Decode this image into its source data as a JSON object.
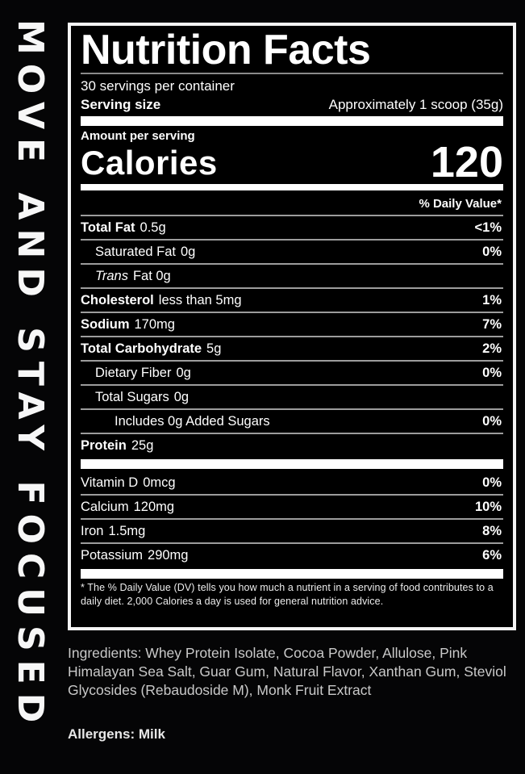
{
  "side_text": "MOVE AND STAY FOCUSED",
  "colors": {
    "page_bg": "#050506",
    "panel_bg": "#000000",
    "text": "#ffffff",
    "muted_text": "#c9c9c9",
    "separator": "#9c9c9c",
    "panel_border": "#f5f5f5"
  },
  "label": {
    "title": "Nutrition Facts",
    "servings_per_container": "30 servings per container",
    "serving_size": {
      "label": "Serving size",
      "value": "Approximately 1 scoop (35g)"
    },
    "amount_per_serving": "Amount per serving",
    "calories": {
      "label": "Calories",
      "value": "120"
    },
    "daily_value_header": "% Daily Value*",
    "nutrients": [
      {
        "name": "Total Fat",
        "value": "0.5g",
        "dv": "<1%",
        "style": "bold",
        "indent": 0
      },
      {
        "name": "Saturated Fat",
        "value": "0g",
        "dv": "0%",
        "style": "plain",
        "indent": 1
      },
      {
        "name": "Trans",
        "value": "Fat 0g",
        "dv": "",
        "style": "italic",
        "indent": 1
      },
      {
        "name": "Cholesterol",
        "value": "less than 5mg",
        "dv": "1%",
        "style": "bold",
        "indent": 0
      },
      {
        "name": "Sodium",
        "value": "170mg",
        "dv": "7%",
        "style": "bold",
        "indent": 0
      },
      {
        "name": "Total Carbohydrate",
        "value": "5g",
        "dv": "2%",
        "style": "bold",
        "indent": 0
      },
      {
        "name": "Dietary Fiber",
        "value": "0g",
        "dv": "0%",
        "style": "plain",
        "indent": 1
      },
      {
        "name": "Total Sugars",
        "value": "0g",
        "dv": "",
        "style": "plain",
        "indent": 1
      },
      {
        "name": "Includes 0g Added Sugars",
        "value": "",
        "dv": "0%",
        "style": "plain",
        "indent": 2
      },
      {
        "name": "Protein",
        "value": "25g",
        "dv": "",
        "style": "bold",
        "indent": 0
      }
    ],
    "vitamins": [
      {
        "name": "Vitamin D",
        "value": "0mcg",
        "dv": "0%",
        "style": "plain",
        "indent": 0
      },
      {
        "name": "Calcium",
        "value": "120mg",
        "dv": "10%",
        "style": "plain",
        "indent": 0
      },
      {
        "name": "Iron",
        "value": "1.5mg",
        "dv": "8%",
        "style": "plain",
        "indent": 0
      },
      {
        "name": "Potassium",
        "value": "290mg",
        "dv": "6%",
        "style": "plain",
        "indent": 0
      }
    ],
    "footnote": "* The % Daily Value (DV) tells you how much a nutrient in a serving of food contributes to a daily diet. 2,000 Calories a day is used for general nutrition advice."
  },
  "ingredients": "Ingredients: Whey Protein Isolate, Cocoa Powder, Allulose, Pink Himalayan Sea Salt, Guar Gum, Natural Flavor, Xanthan Gum, Steviol Glycosides (Rebaudoside M), Monk Fruit Extract",
  "allergens": "Allergens: Milk"
}
